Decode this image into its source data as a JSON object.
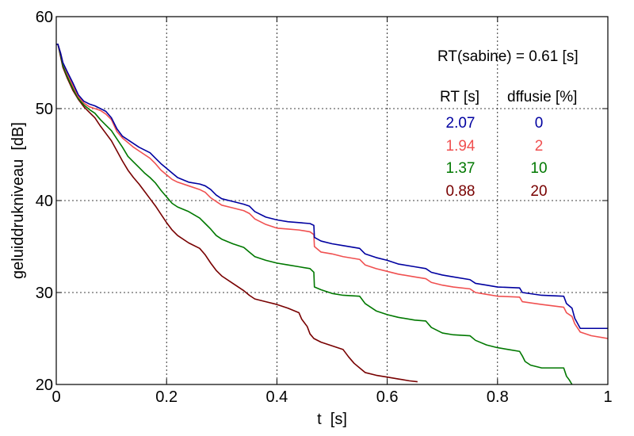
{
  "chart_data": {
    "type": "line",
    "title": "",
    "xlabel": "t  [s]",
    "ylabel": "geluiddrukniveau  [dB]",
    "xlim": [
      0,
      1
    ],
    "ylim": [
      20,
      60
    ],
    "xticks": [
      0,
      0.2,
      0.4,
      0.6,
      0.8,
      1
    ],
    "xtick_labels": [
      "0",
      "0.2",
      "0.4",
      "0.6",
      "0.8",
      "1"
    ],
    "yticks": [
      20,
      30,
      40,
      50,
      60
    ],
    "ytick_labels": [
      "20",
      "30",
      "40",
      "50",
      "60"
    ],
    "grid": true,
    "annotation_sabine": "RT(sabine) = 0.61 [s]",
    "table_headers": [
      "RT [s]",
      "dffusie [%]"
    ],
    "table_rows": [
      {
        "rt": "2.07",
        "diffusie": "0",
        "color": "#0000a0"
      },
      {
        "rt": "1.94",
        "diffusie": "2",
        "color": "#f05050"
      },
      {
        "rt": "1.37",
        "diffusie": "10",
        "color": "#007800"
      },
      {
        "rt": "0.88",
        "diffusie": "20",
        "color": "#780000"
      }
    ],
    "series": [
      {
        "color": "#0000a0",
        "points": [
          [
            0,
            57
          ],
          [
            0.003,
            57
          ],
          [
            0.008,
            56
          ],
          [
            0.012,
            55
          ],
          [
            0.02,
            54
          ],
          [
            0.03,
            52.8
          ],
          [
            0.04,
            51.5
          ],
          [
            0.05,
            50.8
          ],
          [
            0.06,
            50.5
          ],
          [
            0.07,
            50.3
          ],
          [
            0.08,
            50
          ],
          [
            0.09,
            49.7
          ],
          [
            0.1,
            49
          ],
          [
            0.11,
            47.8
          ],
          [
            0.12,
            47
          ],
          [
            0.13,
            46.6
          ],
          [
            0.14,
            46.2
          ],
          [
            0.15,
            45.8
          ],
          [
            0.16,
            45.5
          ],
          [
            0.17,
            45.2
          ],
          [
            0.18,
            44.6
          ],
          [
            0.19,
            44
          ],
          [
            0.2,
            43.5
          ],
          [
            0.21,
            43
          ],
          [
            0.22,
            42.5
          ],
          [
            0.24,
            42
          ],
          [
            0.26,
            41.8
          ],
          [
            0.27,
            41.6
          ],
          [
            0.28,
            41.2
          ],
          [
            0.29,
            40.6
          ],
          [
            0.3,
            40.2
          ],
          [
            0.32,
            39.9
          ],
          [
            0.34,
            39.6
          ],
          [
            0.35,
            39.4
          ],
          [
            0.36,
            38.8
          ],
          [
            0.38,
            38.2
          ],
          [
            0.4,
            37.9
          ],
          [
            0.42,
            37.7
          ],
          [
            0.44,
            37.6
          ],
          [
            0.46,
            37.5
          ],
          [
            0.467,
            37.3
          ],
          [
            0.468,
            36
          ],
          [
            0.48,
            35.6
          ],
          [
            0.5,
            35.3
          ],
          [
            0.52,
            35.1
          ],
          [
            0.55,
            34.8
          ],
          [
            0.56,
            34.2
          ],
          [
            0.58,
            33.8
          ],
          [
            0.6,
            33.5
          ],
          [
            0.62,
            33.1
          ],
          [
            0.65,
            32.8
          ],
          [
            0.67,
            32.6
          ],
          [
            0.68,
            32.2
          ],
          [
            0.7,
            31.9
          ],
          [
            0.72,
            31.7
          ],
          [
            0.75,
            31.4
          ],
          [
            0.76,
            31
          ],
          [
            0.78,
            30.8
          ],
          [
            0.8,
            30.6
          ],
          [
            0.84,
            30.5
          ],
          [
            0.845,
            30
          ],
          [
            0.88,
            29.7
          ],
          [
            0.92,
            29.6
          ],
          [
            0.925,
            28.8
          ],
          [
            0.935,
            28.3
          ],
          [
            0.94,
            27.2
          ],
          [
            0.95,
            26.1
          ],
          [
            1,
            26.1
          ]
        ]
      },
      {
        "color": "#f05050",
        "points": [
          [
            0,
            57
          ],
          [
            0.003,
            57
          ],
          [
            0.008,
            56
          ],
          [
            0.012,
            55
          ],
          [
            0.02,
            53.8
          ],
          [
            0.03,
            52.5
          ],
          [
            0.04,
            51.3
          ],
          [
            0.05,
            50.6
          ],
          [
            0.06,
            50.2
          ],
          [
            0.07,
            50
          ],
          [
            0.08,
            49.8
          ],
          [
            0.09,
            49.4
          ],
          [
            0.1,
            48.8
          ],
          [
            0.11,
            47.5
          ],
          [
            0.12,
            46.8
          ],
          [
            0.13,
            46.3
          ],
          [
            0.14,
            45.8
          ],
          [
            0.15,
            45.4
          ],
          [
            0.16,
            45
          ],
          [
            0.17,
            44.6
          ],
          [
            0.18,
            44
          ],
          [
            0.19,
            43.3
          ],
          [
            0.2,
            42.8
          ],
          [
            0.21,
            42.3
          ],
          [
            0.22,
            42
          ],
          [
            0.24,
            41.6
          ],
          [
            0.26,
            41.2
          ],
          [
            0.27,
            40.9
          ],
          [
            0.28,
            40.3
          ],
          [
            0.29,
            39.9
          ],
          [
            0.3,
            39.5
          ],
          [
            0.32,
            39.2
          ],
          [
            0.34,
            38.9
          ],
          [
            0.35,
            38.6
          ],
          [
            0.36,
            38
          ],
          [
            0.38,
            37.4
          ],
          [
            0.4,
            37
          ],
          [
            0.42,
            36.9
          ],
          [
            0.44,
            36.8
          ],
          [
            0.46,
            36.6
          ],
          [
            0.467,
            36.3
          ],
          [
            0.468,
            35
          ],
          [
            0.48,
            34.4
          ],
          [
            0.5,
            34.2
          ],
          [
            0.52,
            33.9
          ],
          [
            0.55,
            33.6
          ],
          [
            0.56,
            33
          ],
          [
            0.58,
            32.6
          ],
          [
            0.6,
            32.3
          ],
          [
            0.62,
            32
          ],
          [
            0.65,
            31.7
          ],
          [
            0.67,
            31.5
          ],
          [
            0.68,
            31.1
          ],
          [
            0.7,
            30.8
          ],
          [
            0.72,
            30.6
          ],
          [
            0.75,
            30.4
          ],
          [
            0.76,
            30
          ],
          [
            0.78,
            29.8
          ],
          [
            0.8,
            29.6
          ],
          [
            0.84,
            29.5
          ],
          [
            0.845,
            29
          ],
          [
            0.88,
            28.7
          ],
          [
            0.92,
            28.4
          ],
          [
            0.925,
            27.8
          ],
          [
            0.935,
            27.4
          ],
          [
            0.94,
            26.6
          ],
          [
            0.95,
            25.7
          ],
          [
            0.97,
            25.3
          ],
          [
            1,
            25
          ]
        ]
      },
      {
        "color": "#007800",
        "points": [
          [
            0,
            57
          ],
          [
            0.003,
            57
          ],
          [
            0.008,
            55.8
          ],
          [
            0.012,
            54.7
          ],
          [
            0.02,
            53.5
          ],
          [
            0.03,
            52.2
          ],
          [
            0.04,
            51.1
          ],
          [
            0.05,
            50.4
          ],
          [
            0.06,
            49.9
          ],
          [
            0.07,
            49.5
          ],
          [
            0.08,
            48.8
          ],
          [
            0.09,
            48.2
          ],
          [
            0.1,
            47.6
          ],
          [
            0.11,
            46.7
          ],
          [
            0.12,
            45.8
          ],
          [
            0.13,
            44.8
          ],
          [
            0.14,
            44.2
          ],
          [
            0.15,
            43.6
          ],
          [
            0.16,
            43
          ],
          [
            0.17,
            42.5
          ],
          [
            0.18,
            41.9
          ],
          [
            0.19,
            41.1
          ],
          [
            0.2,
            40.4
          ],
          [
            0.21,
            39.7
          ],
          [
            0.22,
            39.3
          ],
          [
            0.24,
            38.8
          ],
          [
            0.26,
            38.1
          ],
          [
            0.27,
            37.5
          ],
          [
            0.28,
            36.9
          ],
          [
            0.29,
            36.2
          ],
          [
            0.3,
            35.8
          ],
          [
            0.32,
            35.3
          ],
          [
            0.34,
            34.9
          ],
          [
            0.35,
            34.4
          ],
          [
            0.36,
            33.9
          ],
          [
            0.38,
            33.5
          ],
          [
            0.4,
            33.2
          ],
          [
            0.42,
            33
          ],
          [
            0.44,
            32.8
          ],
          [
            0.46,
            32.6
          ],
          [
            0.467,
            32.2
          ],
          [
            0.468,
            30.6
          ],
          [
            0.48,
            30.3
          ],
          [
            0.5,
            29.9
          ],
          [
            0.52,
            29.7
          ],
          [
            0.55,
            29.6
          ],
          [
            0.56,
            28.8
          ],
          [
            0.58,
            28
          ],
          [
            0.6,
            27.6
          ],
          [
            0.62,
            27.3
          ],
          [
            0.65,
            27
          ],
          [
            0.67,
            26.9
          ],
          [
            0.68,
            26.2
          ],
          [
            0.7,
            25.6
          ],
          [
            0.72,
            25.4
          ],
          [
            0.75,
            25.3
          ],
          [
            0.76,
            24.8
          ],
          [
            0.78,
            24.3
          ],
          [
            0.8,
            24
          ],
          [
            0.82,
            23.8
          ],
          [
            0.84,
            23.6
          ],
          [
            0.845,
            23.1
          ],
          [
            0.85,
            22.5
          ],
          [
            0.86,
            22.1
          ],
          [
            0.88,
            21.8
          ],
          [
            0.92,
            21.8
          ],
          [
            0.925,
            20.9
          ],
          [
            0.93,
            20.5
          ],
          [
            0.935,
            20
          ]
        ]
      },
      {
        "color": "#780000",
        "points": [
          [
            0,
            57
          ],
          [
            0.003,
            57
          ],
          [
            0.008,
            55.6
          ],
          [
            0.012,
            54.5
          ],
          [
            0.02,
            53.3
          ],
          [
            0.03,
            52
          ],
          [
            0.04,
            51
          ],
          [
            0.05,
            50.2
          ],
          [
            0.06,
            49.6
          ],
          [
            0.07,
            49
          ],
          [
            0.08,
            48.1
          ],
          [
            0.09,
            47.3
          ],
          [
            0.1,
            46.5
          ],
          [
            0.11,
            45.4
          ],
          [
            0.12,
            44.3
          ],
          [
            0.13,
            43.3
          ],
          [
            0.14,
            42.5
          ],
          [
            0.15,
            41.8
          ],
          [
            0.16,
            41
          ],
          [
            0.17,
            40.2
          ],
          [
            0.18,
            39.4
          ],
          [
            0.19,
            38.5
          ],
          [
            0.2,
            37.6
          ],
          [
            0.21,
            36.8
          ],
          [
            0.22,
            36.2
          ],
          [
            0.24,
            35.4
          ],
          [
            0.26,
            34.8
          ],
          [
            0.27,
            34.1
          ],
          [
            0.28,
            33.2
          ],
          [
            0.29,
            32.4
          ],
          [
            0.3,
            31.8
          ],
          [
            0.32,
            31
          ],
          [
            0.34,
            30.2
          ],
          [
            0.35,
            29.7
          ],
          [
            0.36,
            29.3
          ],
          [
            0.38,
            29
          ],
          [
            0.4,
            28.7
          ],
          [
            0.42,
            28.3
          ],
          [
            0.44,
            27.8
          ],
          [
            0.445,
            27.1
          ],
          [
            0.455,
            26.3
          ],
          [
            0.46,
            25.5
          ],
          [
            0.467,
            25
          ],
          [
            0.48,
            24.6
          ],
          [
            0.5,
            24.2
          ],
          [
            0.52,
            23.8
          ],
          [
            0.53,
            23
          ],
          [
            0.54,
            22.3
          ],
          [
            0.55,
            21.8
          ],
          [
            0.56,
            21.3
          ],
          [
            0.58,
            21
          ],
          [
            0.6,
            20.8
          ],
          [
            0.62,
            20.6
          ],
          [
            0.64,
            20.4
          ],
          [
            0.655,
            20.3
          ]
        ]
      }
    ]
  }
}
